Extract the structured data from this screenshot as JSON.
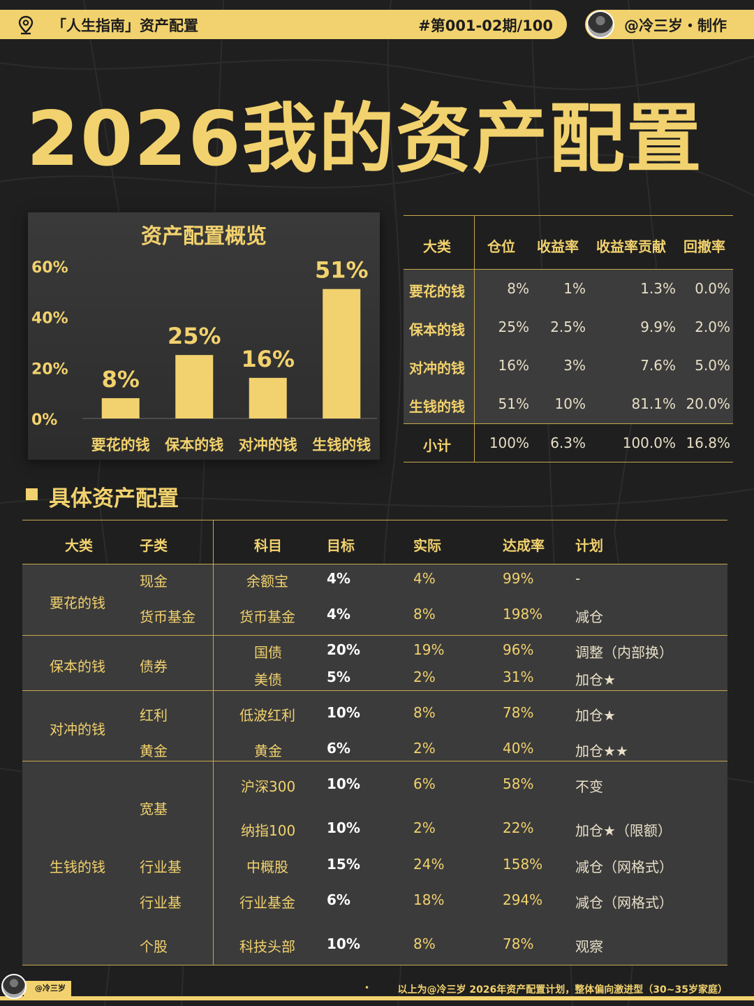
{
  "header": {
    "title": "「人生指南」资产配置",
    "issue": "#第001-02期/100",
    "author": "@冷三岁・制作"
  },
  "main_title": "2026我的资产配置",
  "chart_data": {
    "type": "bar",
    "title": "资产配置概览",
    "categories": [
      "要花的钱",
      "保本的钱",
      "对冲的钱",
      "生钱的钱"
    ],
    "values": [
      8,
      25,
      16,
      51
    ],
    "value_labels": [
      "8%",
      "25%",
      "16%",
      "51%"
    ],
    "ylim": [
      0,
      60
    ],
    "yticks": [
      "0%",
      "20%",
      "40%",
      "60%"
    ],
    "ytick_values": [
      0,
      20,
      40,
      60
    ],
    "grid": false,
    "bar_color": "#f2d26e"
  },
  "summary": {
    "headers": [
      "大类",
      "仓位",
      "收益率",
      "收益率贡献",
      "回撤率"
    ],
    "rows": [
      [
        "要花的钱",
        "8%",
        "1%",
        "1.3%",
        "0.0%"
      ],
      [
        "保本的钱",
        "25%",
        "2.5%",
        "9.9%",
        "2.0%"
      ],
      [
        "对冲的钱",
        "16%",
        "3%",
        "7.6%",
        "5.0%"
      ],
      [
        "生钱的钱",
        "51%",
        "10%",
        "81.1%",
        "20.0%"
      ]
    ],
    "total": [
      "小计",
      "100%",
      "6.3%",
      "100.0%",
      "16.8%"
    ]
  },
  "section_title": "具体资产配置",
  "detail": {
    "headers": [
      "大类",
      "子类",
      "科目",
      "目标",
      "实际",
      "达成率",
      "计划"
    ],
    "groups": [
      "要花的钱",
      "保本的钱",
      "对冲的钱",
      "生钱的钱"
    ],
    "subcategories": [
      "现金",
      "货币基金",
      "债券",
      "红利",
      "黄金",
      "宽基",
      "行业基",
      "行业基",
      "个股"
    ],
    "rows": [
      [
        "余额宝",
        "4%",
        "4%",
        "99%",
        "-"
      ],
      [
        "货币基金",
        "4%",
        "8%",
        "198%",
        "减仓"
      ],
      [
        "国债",
        "20%",
        "19%",
        "96%",
        "调整（内部换）"
      ],
      [
        "美债",
        "5%",
        "2%",
        "31%",
        "加仓★"
      ],
      [
        "低波红利",
        "10%",
        "8%",
        "78%",
        "加仓★"
      ],
      [
        "黄金",
        "6%",
        "2%",
        "40%",
        "加仓★★"
      ],
      [
        "沪深300",
        "10%",
        "6%",
        "58%",
        "不变"
      ],
      [
        "纳指100",
        "10%",
        "2%",
        "22%",
        "加仓★（限额）"
      ],
      [
        "中概股",
        "15%",
        "24%",
        "158%",
        "减仓（网格式）"
      ],
      [
        "行业基金",
        "6%",
        "18%",
        "294%",
        "减仓（网格式）"
      ],
      [
        "科技头部",
        "10%",
        "8%",
        "78%",
        "观察"
      ]
    ]
  },
  "footer": {
    "tag": "@冷三岁",
    "dot": "•",
    "note": "以上为@冷三岁 2026年资产配置计划，整体偏向激进型（30~35岁家庭）"
  },
  "colors": {
    "accent": "#f2d26e",
    "background": "#1f1f1f",
    "line": "#c8a94c"
  }
}
